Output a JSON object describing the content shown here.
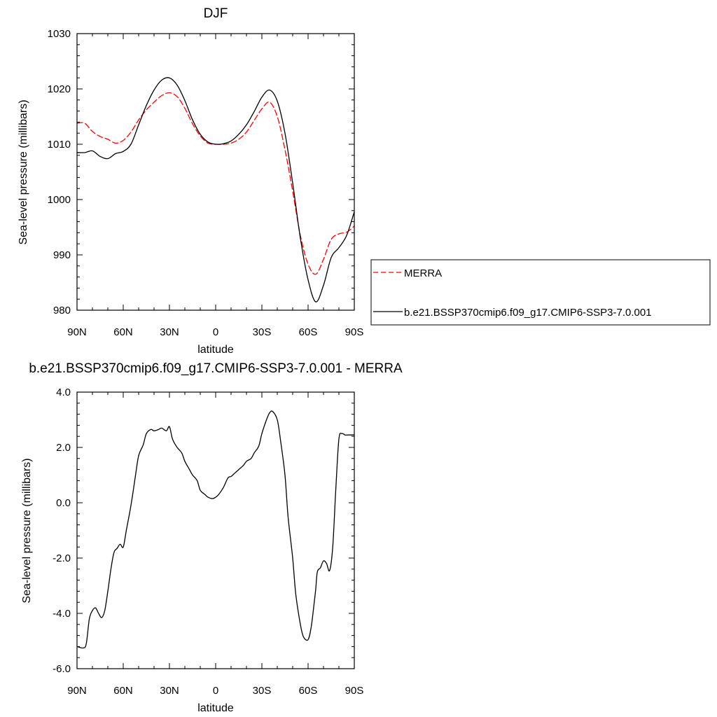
{
  "chart_data": [
    {
      "type": "line",
      "title": "DJF",
      "xlabel": "latitude",
      "ylabel": "Sea-level pressure (millibars)",
      "xlim": [
        90,
        -90
      ],
      "ylim": [
        980,
        1030
      ],
      "x_ticks": [
        90,
        60,
        30,
        0,
        -30,
        -60,
        -90
      ],
      "x_tick_labels": [
        "90N",
        "60N",
        "30N",
        "0",
        "30S",
        "60S",
        "90S"
      ],
      "y_ticks": [
        980,
        990,
        1000,
        1010,
        1020,
        1030
      ],
      "y_tick_labels": [
        "980",
        "990",
        "1000",
        "1010",
        "1020",
        "1030"
      ],
      "legend_position": "right",
      "series": [
        {
          "name": "MERRA",
          "color": "#ff0000",
          "style": "dashed",
          "x": [
            90,
            85,
            80,
            75,
            70,
            65,
            60,
            55,
            50,
            45,
            40,
            35,
            30,
            25,
            20,
            15,
            10,
            5,
            0,
            -5,
            -10,
            -15,
            -20,
            -25,
            -30,
            -35,
            -40,
            -45,
            -50,
            -55,
            -60,
            -65,
            -70,
            -75,
            -80,
            -85,
            -90
          ],
          "values": [
            1013.8,
            1013.8,
            1012.3,
            1011.4,
            1010.9,
            1010.2,
            1010.7,
            1012.2,
            1014.4,
            1016.2,
            1017.6,
            1018.8,
            1019.3,
            1018.6,
            1016.5,
            1013.7,
            1011.5,
            1010.2,
            1010.0,
            1010.0,
            1010.2,
            1010.9,
            1012.2,
            1014.3,
            1016.4,
            1017.6,
            1015.0,
            1009.0,
            1001.5,
            993.5,
            988.3,
            986.5,
            989.2,
            992.8,
            993.8,
            994.1,
            995.2
          ]
        },
        {
          "name": "b.e21.BSSP370cmip6.f09_g17.CMIP6-SSP3-7.0.001",
          "color": "#000000",
          "style": "solid",
          "x": [
            90,
            85,
            80,
            75,
            70,
            65,
            60,
            55,
            50,
            45,
            40,
            35,
            30,
            25,
            20,
            15,
            10,
            5,
            0,
            -5,
            -10,
            -15,
            -20,
            -25,
            -30,
            -35,
            -40,
            -45,
            -50,
            -55,
            -60,
            -65,
            -70,
            -75,
            -80,
            -85,
            -90
          ],
          "values": [
            1008.5,
            1008.5,
            1008.8,
            1007.8,
            1007.4,
            1008.3,
            1008.7,
            1010.0,
            1013.5,
            1017.0,
            1019.8,
            1021.6,
            1022.0,
            1020.7,
            1017.9,
            1014.4,
            1011.8,
            1010.4,
            1010.0,
            1010.1,
            1010.6,
            1011.8,
            1013.5,
            1015.9,
            1018.5,
            1019.8,
            1017.8,
            1012.0,
            1003.0,
            993.0,
            985.5,
            981.5,
            984.5,
            989.5,
            991.3,
            993.5,
            997.8
          ]
        }
      ]
    },
    {
      "type": "line",
      "title": "b.e21.BSSP370cmip6.f09_g17.CMIP6-SSP3-7.0.001 - MERRA",
      "xlabel": "latitude",
      "ylabel": "Sea-level pressure (millibars)",
      "xlim": [
        90,
        -90
      ],
      "ylim": [
        -6,
        4
      ],
      "x_ticks": [
        90,
        60,
        30,
        0,
        -30,
        -60,
        -90
      ],
      "x_tick_labels": [
        "90N",
        "60N",
        "30N",
        "0",
        "30S",
        "60S",
        "90S"
      ],
      "y_ticks": [
        -6,
        -4,
        -2,
        0,
        2,
        4
      ],
      "y_tick_labels": [
        "-6.0",
        "-4.0",
        "-2.0",
        "0.0",
        "2.0",
        "4.0"
      ],
      "series": [
        {
          "name": "",
          "color": "#000000",
          "style": "solid",
          "x": [
            90,
            86,
            84,
            82,
            80,
            78,
            76,
            74,
            72,
            70,
            68,
            66,
            64,
            62,
            60,
            58,
            55,
            52,
            50,
            47,
            45,
            42,
            40,
            37,
            35,
            32,
            30,
            28,
            25,
            22,
            20,
            17,
            15,
            12,
            10,
            7,
            5,
            2,
            0,
            -2,
            -5,
            -8,
            -10,
            -12,
            -15,
            -18,
            -20,
            -23,
            -25,
            -28,
            -30,
            -33,
            -35,
            -37,
            -40,
            -42,
            -45,
            -47,
            -50,
            -52,
            -55,
            -57,
            -60,
            -62,
            -64,
            -65,
            -66,
            -68,
            -70,
            -72,
            -74,
            -76,
            -78,
            -80,
            -82,
            -84,
            -86,
            -88,
            -90
          ],
          "values": [
            -5.2,
            -5.25,
            -5.1,
            -4.2,
            -3.9,
            -3.8,
            -4.0,
            -4.15,
            -3.9,
            -3.2,
            -2.4,
            -1.8,
            -1.65,
            -1.5,
            -1.6,
            -1.0,
            -0.1,
            1.0,
            1.7,
            2.1,
            2.5,
            2.65,
            2.6,
            2.65,
            2.7,
            2.6,
            2.75,
            2.3,
            2.0,
            1.8,
            1.5,
            1.2,
            1.0,
            0.8,
            0.45,
            0.3,
            0.2,
            0.15,
            0.2,
            0.3,
            0.55,
            0.9,
            0.95,
            1.05,
            1.2,
            1.35,
            1.5,
            1.6,
            1.8,
            2.05,
            2.5,
            3.0,
            3.25,
            3.3,
            3.0,
            2.3,
            1.0,
            -0.5,
            -2.0,
            -3.3,
            -4.4,
            -4.85,
            -4.95,
            -4.5,
            -3.6,
            -3.1,
            -2.5,
            -2.35,
            -2.1,
            -2.2,
            -2.45,
            -1.6,
            0.5,
            2.3,
            2.5,
            2.45,
            2.45,
            2.45,
            2.45
          ]
        }
      ]
    }
  ]
}
